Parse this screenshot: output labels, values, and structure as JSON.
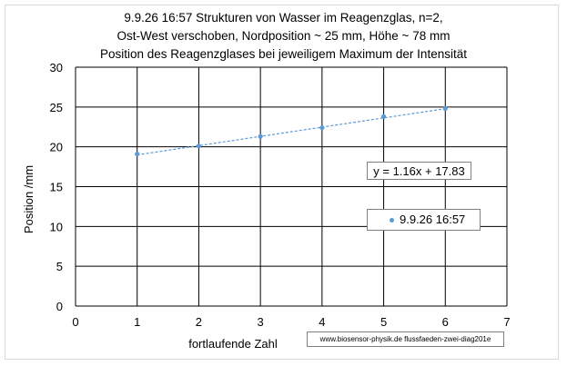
{
  "chart_data": {
    "type": "scatter",
    "title_lines": [
      "9.9.26 16:57  Strukturen von Wasser im Reagenzglas, n=2,",
      "Ost-West verschoben, Nordposition ~ 25  mm, Höhe ~ 78 mm",
      "Position des Reagenzglases bei jeweiligem Maximum der Intensität"
    ],
    "xlabel": "fortlaufende Zahl",
    "ylabel": "Position /mm",
    "xlim": [
      0,
      7
    ],
    "ylim": [
      0,
      30
    ],
    "xticks": [
      "0",
      "1",
      "2",
      "3",
      "4",
      "5",
      "6",
      "7"
    ],
    "yticks": [
      "0",
      "5",
      "10",
      "15",
      "20",
      "25",
      "30"
    ],
    "grid": true,
    "series": [
      {
        "name": "9.9.26 16:57",
        "x": [
          1,
          2,
          3,
          4,
          5,
          6
        ],
        "y": [
          19.1,
          20.1,
          21.3,
          22.4,
          23.8,
          24.8
        ],
        "color": "#5b9bd5"
      }
    ],
    "trendline": {
      "slope": 1.16,
      "intercept": 17.83,
      "label": "y = 1.16x + 17.83",
      "style": "dashed",
      "color": "#5b9bd5"
    },
    "legend_position": "right"
  },
  "source_note": "www.biosensor-physik.de  flussfaeden-zwei-diag201e"
}
